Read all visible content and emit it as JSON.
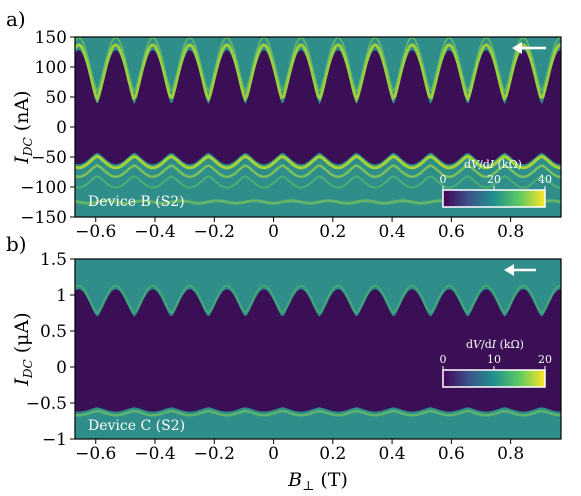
{
  "chart_data": [
    {
      "panel": "a)",
      "type": "heatmap",
      "device_label": "Device B (S2)",
      "ylabel": "I_DC (nA)",
      "ylabel_parts": {
        "symbol": "I",
        "subscript": "DC",
        "unit": " (nA)"
      },
      "xlim": [
        -0.67,
        0.97
      ],
      "ylim": [
        -150,
        150
      ],
      "x_ticks": [
        -0.6,
        -0.4,
        -0.2,
        0,
        0.2,
        0.4,
        0.6,
        0.8
      ],
      "x_tick_labels": [
        "−0.6",
        "−0.4",
        "−0.2",
        "0",
        "0.2",
        "0.4",
        "0.6",
        "0.8"
      ],
      "y_ticks": [
        150,
        100,
        50,
        0,
        -50,
        -100,
        -150
      ],
      "y_tick_labels": [
        "150",
        "100",
        "50",
        "0",
        "−50",
        "−100",
        "−150"
      ],
      "sweep_direction": "left",
      "lobe_period_T": 0.125,
      "lobe_phase_T": 0.03,
      "switching_current_max": 128,
      "switching_current_min": 38,
      "retrapping_current_max": -43,
      "retrapping_current_min": -62,
      "colorbar": {
        "title_parts": {
          "a": "d",
          "b": "V",
          "c": "/d",
          "d": "I",
          "e": " (kΩ)"
        },
        "ticks": [
          0,
          20,
          40
        ],
        "tick_labels": [
          "0",
          "20",
          "40"
        ],
        "range": [
          0,
          40
        ]
      }
    },
    {
      "panel": "b)",
      "type": "heatmap",
      "device_label": "Device C (S2)",
      "ylabel": "I_DC (μA)",
      "ylabel_parts": {
        "symbol": "I",
        "subscript": "DC",
        "unit": " (μA)"
      },
      "xlabel": "B⊥ (T)",
      "xlabel_parts": {
        "symbol": "B",
        "subscript": "⊥",
        "unit": " (T)"
      },
      "xlim": [
        -0.67,
        0.97
      ],
      "ylim": [
        -1,
        1.5
      ],
      "x_ticks": [
        -0.6,
        -0.4,
        -0.2,
        0,
        0.2,
        0.4,
        0.6,
        0.8
      ],
      "x_tick_labels": [
        "−0.6",
        "−0.4",
        "−0.2",
        "0",
        "0.2",
        "0.4",
        "0.6",
        "0.8"
      ],
      "y_ticks": [
        1.5,
        1,
        0.5,
        0,
        -0.5,
        -1
      ],
      "y_tick_labels": [
        "1.5",
        "1",
        "0.5",
        "0",
        "−0.5",
        "−1"
      ],
      "sweep_direction": "left",
      "lobe_period_T": 0.125,
      "lobe_phase_T": 0.03,
      "switching_current_max": 1.08,
      "switching_current_min": 0.7,
      "retrapping_current_max": -0.56,
      "retrapping_current_min": -0.62,
      "colorbar": {
        "title_parts": {
          "a": "d",
          "b": "V",
          "c": "/d",
          "d": "I",
          "e": " (kΩ)"
        },
        "ticks": [
          0,
          10,
          20
        ],
        "tick_labels": [
          "0",
          "10",
          "20"
        ],
        "range": [
          0,
          20
        ]
      }
    }
  ],
  "colors": {
    "superconducting": "#3b0f55",
    "normal": "#2f8d8a",
    "bright": "#b9de28",
    "axis": "#000000",
    "white": "#ffffff"
  }
}
